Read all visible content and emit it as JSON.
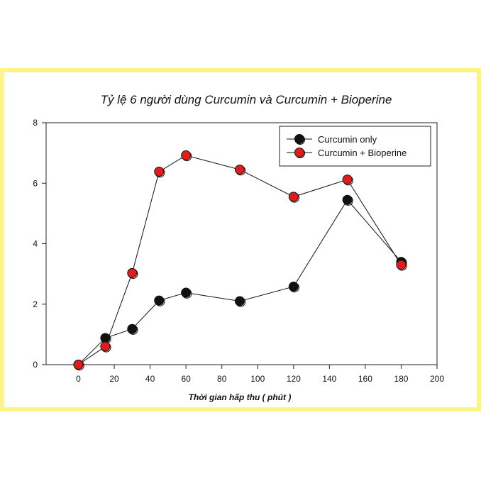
{
  "chart_data": {
    "type": "line",
    "title": "Tỷ lệ 6 người dùng Curcumin và Curcumin + Bioperine",
    "xlabel": "Thời gian hấp thu ( phút )",
    "ylabel": "",
    "x": [
      0,
      15,
      30,
      45,
      60,
      90,
      120,
      150,
      180
    ],
    "xlim": [
      -18,
      200
    ],
    "ylim": [
      0,
      8
    ],
    "x_ticks": [
      "0",
      "20",
      "40",
      "60",
      "80",
      "100",
      "120",
      "140",
      "160",
      "180",
      "200"
    ],
    "y_ticks": [
      "0",
      "2",
      "4",
      "6",
      "8"
    ],
    "grid": false,
    "legend_position": "top-right",
    "series": [
      {
        "name": "Curcumin only",
        "color": "#111111",
        "values": [
          0,
          0.88,
          1.18,
          2.12,
          2.38,
          2.1,
          2.58,
          5.45,
          3.4
        ]
      },
      {
        "name": "Curcumin + Bioperine",
        "color": "#e31b1b",
        "values": [
          0,
          0.6,
          3.03,
          6.38,
          6.92,
          6.45,
          5.55,
          6.12,
          3.3
        ]
      }
    ]
  }
}
